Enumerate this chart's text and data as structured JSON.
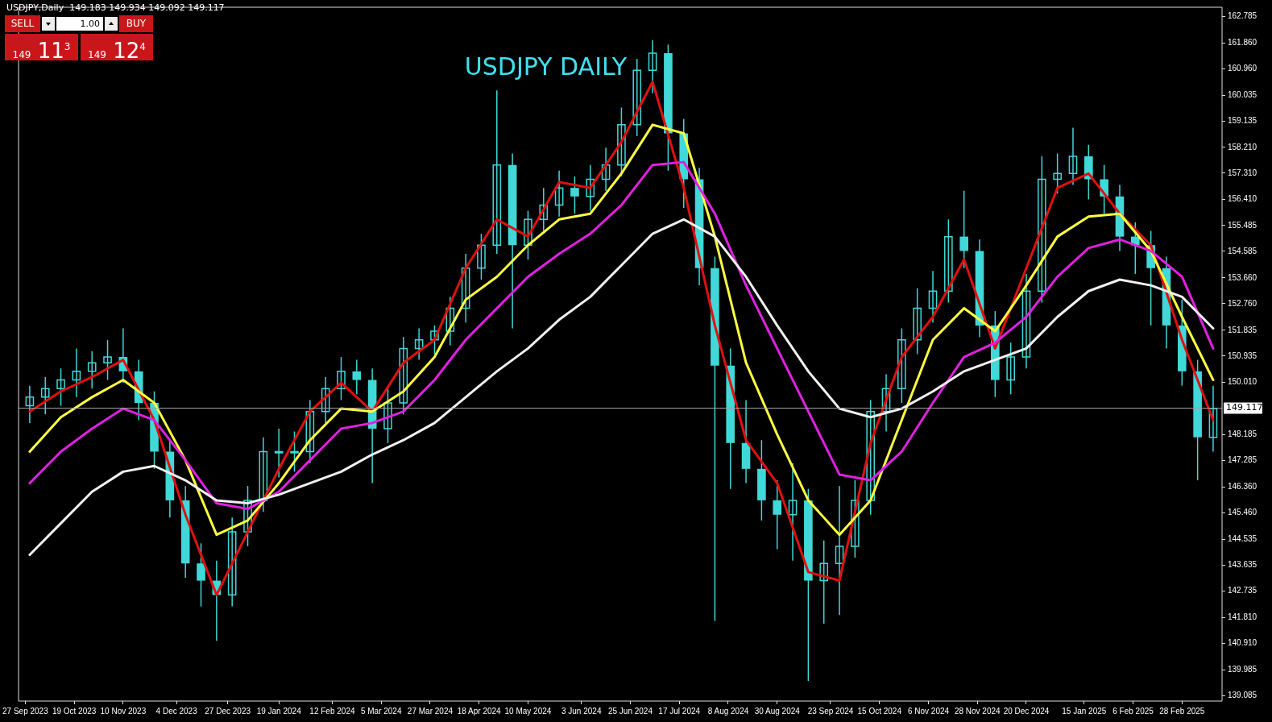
{
  "chart_data": {
    "type": "candlestick",
    "title": "USDJPY DAILY",
    "annotations": [
      "USDJPY,Daily  149.183 149.934 149.092 149.117",
      "SELL",
      "1.00",
      "BUY",
      "149 11$^{3}$",
      "149 12$^{4}$"
    ],
    "color": "#40d8d8",
    "x": [
      "2023-09-29",
      "2023-10-06",
      "2023-10-13",
      "2023-10-20",
      "2023-10-27",
      "2023-11-03",
      "2023-11-10",
      "2023-11-17",
      "2023-11-24",
      "2023-12-01",
      "2023-12-08",
      "2023-12-15",
      "2023-12-22",
      "2023-12-29",
      "2024-01-05",
      "2024-01-12",
      "2024-01-19",
      "2024-01-26",
      "2024-02-02",
      "2024-02-09",
      "2024-02-16",
      "2024-02-23",
      "2024-03-01",
      "2024-03-08",
      "2024-03-15",
      "2024-03-22",
      "2024-03-29",
      "2024-04-05",
      "2024-04-12",
      "2024-04-19",
      "2024-04-26",
      "2024-05-03",
      "2024-05-10",
      "2024-05-17",
      "2024-05-24",
      "2024-05-31",
      "2024-06-07",
      "2024-06-14",
      "2024-06-21",
      "2024-06-28",
      "2024-07-05",
      "2024-07-12",
      "2024-07-19",
      "2024-07-26",
      "2024-08-02",
      "2024-08-09",
      "2024-08-16",
      "2024-08-23",
      "2024-08-30",
      "2024-09-06",
      "2024-09-13",
      "2024-09-20",
      "2024-09-27",
      "2024-10-04",
      "2024-10-11",
      "2024-10-18",
      "2024-10-25",
      "2024-11-01",
      "2024-11-08",
      "2024-11-15",
      "2024-11-22",
      "2024-11-29",
      "2024-12-06",
      "2024-12-13",
      "2024-12-20",
      "2024-12-27",
      "2025-01-03",
      "2025-01-10",
      "2025-01-17",
      "2025-01-24",
      "2025-01-31",
      "2025-02-07",
      "2025-02-14",
      "2025-02-21",
      "2025-02-28",
      "2025-03-07",
      "2025-03-14"
    ],
    "ohlc": [
      [
        149.2,
        149.9,
        148.6,
        149.5
      ],
      [
        149.5,
        150.2,
        148.9,
        149.8
      ],
      [
        149.8,
        150.5,
        149.2,
        150.1
      ],
      [
        150.1,
        151.2,
        149.5,
        150.4
      ],
      [
        150.4,
        151.1,
        149.8,
        150.7
      ],
      [
        150.7,
        151.5,
        150.1,
        150.9
      ],
      [
        150.9,
        151.9,
        150.0,
        150.4
      ],
      [
        150.4,
        150.8,
        148.7,
        149.3
      ],
      [
        149.3,
        149.7,
        147.0,
        147.6
      ],
      [
        147.6,
        148.0,
        145.3,
        145.9
      ],
      [
        145.9,
        146.4,
        143.2,
        143.7
      ],
      [
        143.7,
        144.4,
        142.2,
        143.1
      ],
      [
        143.1,
        143.8,
        141.0,
        142.6
      ],
      [
        142.6,
        145.3,
        142.2,
        144.8
      ],
      [
        144.8,
        146.4,
        144.3,
        145.9
      ],
      [
        145.9,
        148.1,
        145.5,
        147.6
      ],
      [
        147.6,
        148.4,
        146.7,
        147.6
      ],
      [
        147.6,
        148.3,
        146.9,
        147.6
      ],
      [
        147.6,
        149.4,
        147.2,
        149.0
      ],
      [
        149.0,
        150.2,
        148.6,
        149.8
      ],
      [
        149.8,
        150.9,
        149.4,
        150.4
      ],
      [
        150.4,
        150.8,
        149.6,
        150.1
      ],
      [
        150.1,
        150.5,
        146.5,
        148.4
      ],
      [
        148.4,
        149.8,
        147.9,
        149.3
      ],
      [
        149.3,
        151.6,
        148.9,
        151.2
      ],
      [
        151.2,
        151.9,
        150.8,
        151.5
      ],
      [
        151.5,
        152.0,
        151.0,
        151.8
      ],
      [
        151.8,
        153.0,
        151.3,
        152.6
      ],
      [
        152.6,
        154.5,
        152.1,
        154.0
      ],
      [
        154.0,
        155.2,
        153.6,
        154.8
      ],
      [
        154.8,
        160.2,
        154.5,
        157.6
      ],
      [
        157.6,
        158.0,
        151.9,
        154.8
      ],
      [
        154.8,
        156.0,
        154.3,
        155.7
      ],
      [
        155.7,
        156.8,
        155.3,
        156.2
      ],
      [
        156.2,
        157.4,
        155.8,
        156.8
      ],
      [
        156.8,
        157.2,
        155.9,
        156.5
      ],
      [
        156.5,
        157.6,
        156.0,
        157.1
      ],
      [
        157.1,
        158.2,
        156.7,
        157.6
      ],
      [
        157.6,
        159.6,
        157.2,
        159.0
      ],
      [
        159.0,
        161.3,
        158.6,
        160.9
      ],
      [
        160.9,
        161.95,
        160.1,
        161.5
      ],
      [
        161.5,
        161.8,
        157.4,
        158.7
      ],
      [
        158.7,
        159.2,
        156.1,
        157.1
      ],
      [
        157.1,
        157.5,
        153.4,
        154.0
      ],
      [
        154.0,
        154.4,
        141.7,
        150.6
      ],
      [
        150.6,
        151.2,
        146.3,
        147.9
      ],
      [
        147.9,
        149.4,
        146.5,
        147.0
      ],
      [
        147.0,
        148.0,
        145.2,
        145.9
      ],
      [
        145.9,
        146.6,
        144.2,
        145.4
      ],
      [
        145.4,
        147.2,
        143.8,
        145.9
      ],
      [
        145.9,
        146.3,
        139.6,
        143.1
      ],
      [
        143.1,
        144.5,
        141.6,
        143.7
      ],
      [
        143.7,
        146.4,
        141.9,
        144.3
      ],
      [
        144.3,
        146.6,
        143.9,
        145.9
      ],
      [
        145.9,
        149.4,
        145.4,
        149.0
      ],
      [
        149.0,
        150.3,
        148.3,
        149.8
      ],
      [
        149.8,
        151.9,
        149.3,
        151.5
      ],
      [
        151.5,
        153.3,
        151.0,
        152.6
      ],
      [
        152.6,
        153.9,
        152.1,
        153.2
      ],
      [
        153.2,
        155.7,
        152.8,
        155.1
      ],
      [
        155.1,
        156.7,
        154.0,
        154.6
      ],
      [
        154.6,
        155.0,
        151.6,
        152.0
      ],
      [
        152.0,
        152.5,
        149.5,
        150.1
      ],
      [
        150.1,
        151.4,
        149.6,
        150.9
      ],
      [
        150.9,
        153.8,
        150.5,
        153.2
      ],
      [
        153.2,
        157.9,
        152.8,
        157.1
      ],
      [
        157.1,
        158.0,
        156.6,
        157.3
      ],
      [
        157.3,
        158.9,
        156.9,
        157.9
      ],
      [
        157.9,
        158.3,
        156.4,
        157.1
      ],
      [
        157.1,
        157.6,
        155.9,
        156.5
      ],
      [
        156.5,
        156.9,
        154.6,
        155.1
      ],
      [
        155.1,
        155.6,
        153.8,
        154.8
      ],
      [
        154.8,
        155.3,
        152.0,
        154.0
      ],
      [
        154.0,
        154.4,
        151.2,
        152.0
      ],
      [
        152.0,
        152.9,
        149.9,
        150.4
      ],
      [
        150.4,
        150.8,
        146.6,
        148.1
      ],
      [
        148.1,
        149.9,
        147.6,
        149.1
      ]
    ],
    "series": [
      {
        "type": "line",
        "color": "#f0f0f0",
        "x": [
          "2023-09-29",
          "2023-10-13",
          "2023-10-27",
          "2023-11-10",
          "2023-11-24",
          "2023-12-08",
          "2023-12-22",
          "2024-01-05",
          "2024-01-19",
          "2024-02-02",
          "2024-02-16",
          "2024-03-01",
          "2024-03-15",
          "2024-03-29",
          "2024-04-12",
          "2024-04-26",
          "2024-05-10",
          "2024-05-24",
          "2024-06-07",
          "2024-06-21",
          "2024-07-05",
          "2024-07-19",
          "2024-08-02",
          "2024-08-16",
          "2024-08-30",
          "2024-09-13",
          "2024-09-27",
          "2024-10-11",
          "2024-10-25",
          "2024-11-08",
          "2024-11-22",
          "2024-12-06",
          "2024-12-20",
          "2025-01-03",
          "2025-01-17",
          "2025-01-31",
          "2025-02-14",
          "2025-02-28",
          "2025-03-14"
        ],
        "values": [
          144.0,
          145.1,
          146.2,
          146.9,
          147.1,
          146.6,
          145.9,
          145.8,
          146.1,
          146.5,
          146.9,
          147.5,
          148.0,
          148.6,
          149.5,
          150.4,
          151.2,
          152.2,
          153.0,
          154.1,
          155.2,
          155.7,
          155.1,
          153.7,
          152.0,
          150.4,
          149.1,
          148.8,
          149.1,
          149.7,
          150.4,
          150.8,
          151.2,
          152.3,
          153.2,
          153.6,
          153.4,
          153.0,
          151.9
        ]
      },
      {
        "type": "line",
        "color": "#e020e0",
        "x": [
          "2023-09-29",
          "2023-10-13",
          "2023-10-27",
          "2023-11-10",
          "2023-11-24",
          "2023-12-08",
          "2023-12-22",
          "2024-01-05",
          "2024-01-19",
          "2024-02-02",
          "2024-02-16",
          "2024-03-01",
          "2024-03-15",
          "2024-03-29",
          "2024-04-12",
          "2024-04-26",
          "2024-05-10",
          "2024-05-24",
          "2024-06-07",
          "2024-06-21",
          "2024-07-05",
          "2024-07-19",
          "2024-08-02",
          "2024-08-16",
          "2024-08-30",
          "2024-09-13",
          "2024-09-27",
          "2024-10-11",
          "2024-10-25",
          "2024-11-08",
          "2024-11-22",
          "2024-12-06",
          "2024-12-20",
          "2025-01-03",
          "2025-01-17",
          "2025-01-31",
          "2025-02-14",
          "2025-02-28",
          "2025-03-14"
        ],
        "values": [
          146.5,
          147.6,
          148.4,
          149.1,
          148.7,
          147.3,
          145.8,
          145.6,
          146.2,
          147.3,
          148.4,
          148.6,
          149.0,
          150.1,
          151.5,
          152.6,
          153.7,
          154.5,
          155.2,
          156.2,
          157.6,
          157.7,
          155.9,
          153.4,
          151.2,
          149.0,
          146.8,
          146.6,
          147.6,
          149.3,
          150.9,
          151.4,
          152.3,
          153.7,
          154.7,
          155.0,
          154.6,
          153.7,
          151.2
        ]
      },
      {
        "type": "line",
        "color": "#ffff40",
        "x": [
          "2023-09-29",
          "2023-10-13",
          "2023-10-27",
          "2023-11-10",
          "2023-11-24",
          "2023-12-08",
          "2023-12-22",
          "2024-01-05",
          "2024-01-19",
          "2024-02-02",
          "2024-02-16",
          "2024-03-01",
          "2024-03-15",
          "2024-03-29",
          "2024-04-12",
          "2024-04-26",
          "2024-05-10",
          "2024-05-24",
          "2024-06-07",
          "2024-06-21",
          "2024-07-05",
          "2024-07-19",
          "2024-08-02",
          "2024-08-16",
          "2024-08-30",
          "2024-09-13",
          "2024-09-27",
          "2024-10-11",
          "2024-10-25",
          "2024-11-08",
          "2024-11-22",
          "2024-12-06",
          "2024-12-20",
          "2025-01-03",
          "2025-01-17",
          "2025-01-31",
          "2025-02-14",
          "2025-02-28",
          "2025-03-14"
        ],
        "values": [
          147.6,
          148.8,
          149.5,
          150.1,
          149.3,
          147.3,
          144.7,
          145.2,
          146.5,
          148.0,
          149.1,
          149.0,
          149.7,
          150.9,
          152.9,
          153.7,
          154.8,
          155.7,
          155.9,
          157.3,
          159.0,
          158.7,
          155.1,
          150.7,
          148.2,
          145.9,
          144.7,
          145.9,
          148.7,
          151.5,
          152.6,
          151.8,
          153.4,
          155.1,
          155.8,
          155.9,
          154.6,
          152.3,
          150.1
        ]
      },
      {
        "type": "line",
        "color": "#e01010",
        "x": [
          "2023-09-29",
          "2023-10-13",
          "2023-10-27",
          "2023-11-10",
          "2023-11-24",
          "2023-12-08",
          "2023-12-22",
          "2024-01-05",
          "2024-01-19",
          "2024-02-02",
          "2024-02-16",
          "2024-03-01",
          "2024-03-15",
          "2024-03-29",
          "2024-04-12",
          "2024-04-26",
          "2024-05-10",
          "2024-05-24",
          "2024-06-07",
          "2024-06-21",
          "2024-07-05",
          "2024-07-19",
          "2024-08-02",
          "2024-08-16",
          "2024-08-30",
          "2024-09-13",
          "2024-09-27",
          "2024-10-11",
          "2024-10-25",
          "2024-11-08",
          "2024-11-22",
          "2024-12-06",
          "2024-12-20",
          "2025-01-03",
          "2025-01-17",
          "2025-01-31",
          "2025-02-14",
          "2025-02-28",
          "2025-03-14"
        ],
        "values": [
          149.0,
          149.7,
          150.2,
          150.8,
          148.7,
          145.4,
          142.6,
          144.8,
          147.0,
          149.0,
          150.0,
          149.0,
          150.7,
          151.5,
          154.0,
          155.7,
          155.1,
          157.0,
          156.8,
          158.4,
          160.5,
          156.8,
          152.0,
          148.0,
          146.5,
          143.4,
          143.1,
          147.9,
          150.9,
          152.3,
          154.3,
          151.2,
          154.0,
          156.8,
          157.3,
          155.9,
          154.8,
          151.5,
          148.7
        ]
      }
    ],
    "xlim": [
      "2023-09-24",
      "2025-03-18"
    ],
    "xticks": [
      {
        "value": "2023-09-27",
        "label": "27 Sep 2023"
      },
      {
        "value": "2023-10-19",
        "label": "19 Oct 2023"
      },
      {
        "value": "2023-11-10",
        "label": "10 Nov 2023"
      },
      {
        "value": "2023-12-04",
        "label": "4 Dec 2023"
      },
      {
        "value": "2023-12-27",
        "label": "27 Dec 2023"
      },
      {
        "value": "2024-01-19",
        "label": "19 Jan 2024"
      },
      {
        "value": "2024-02-12",
        "label": "12 Feb 2024"
      },
      {
        "value": "2024-03-05",
        "label": "5 Mar 2024"
      },
      {
        "value": "2024-03-27",
        "label": "27 Mar 2024"
      },
      {
        "value": "2024-04-18",
        "label": "18 Apr 2024"
      },
      {
        "value": "2024-05-10",
        "label": "10 May 2024"
      },
      {
        "value": "2024-06-03",
        "label": "3 Jun 2024"
      },
      {
        "value": "2024-06-25",
        "label": "25 Jun 2024"
      },
      {
        "value": "2024-07-17",
        "label": "17 Jul 2024"
      },
      {
        "value": "2024-08-08",
        "label": "8 Aug 2024"
      },
      {
        "value": "2024-08-30",
        "label": "30 Aug 2024"
      },
      {
        "value": "2024-09-23",
        "label": "23 Sep 2024"
      },
      {
        "value": "2024-10-15",
        "label": "15 Oct 2024"
      },
      {
        "value": "2024-11-06",
        "label": "6 Nov 2024"
      },
      {
        "value": "2024-11-28",
        "label": "28 Nov 2024"
      },
      {
        "value": "2024-12-20",
        "label": "20 Dec 2024"
      },
      {
        "value": "2025-01-15",
        "label": "15 Jan 2025"
      },
      {
        "value": "2025-02-06",
        "label": "6 Feb 2025"
      },
      {
        "value": "2025-02-28",
        "label": "28 Feb 2025"
      }
    ],
    "ylim": [
      138.9,
      163.1
    ],
    "yticks": [
      162.785,
      {
        "value": 161.86,
        "label": "161.860"
      },
      {
        "value": 160.96,
        "label": "160.960"
      },
      160.035,
      159.135,
      {
        "value": 158.21,
        "label": "158.210"
      },
      {
        "value": 157.31,
        "label": "157.310"
      },
      {
        "value": 156.41,
        "label": "156.410"
      },
      155.485,
      154.585,
      {
        "value": 153.66,
        "label": "153.660"
      },
      {
        "value": 152.76,
        "label": "152.760"
      },
      151.835,
      150.935,
      {
        "value": 150.01,
        "label": "150.010"
      },
      148.185,
      147.285,
      {
        "value": 146.36,
        "label": "146.360"
      },
      {
        "value": 145.46,
        "label": "145.460"
      },
      144.535,
      143.635,
      142.735,
      {
        "value": 141.81,
        "label": "141.810"
      },
      {
        "value": 140.91,
        "label": "140.910"
      },
      139.985,
      139.085
    ],
    "ref_lines": [
      {
        "axis": "y",
        "value": 149.117,
        "label": "149.117",
        "color": "#a0a0a0"
      }
    ],
    "marker": "none",
    "line_style": "solid"
  }
}
